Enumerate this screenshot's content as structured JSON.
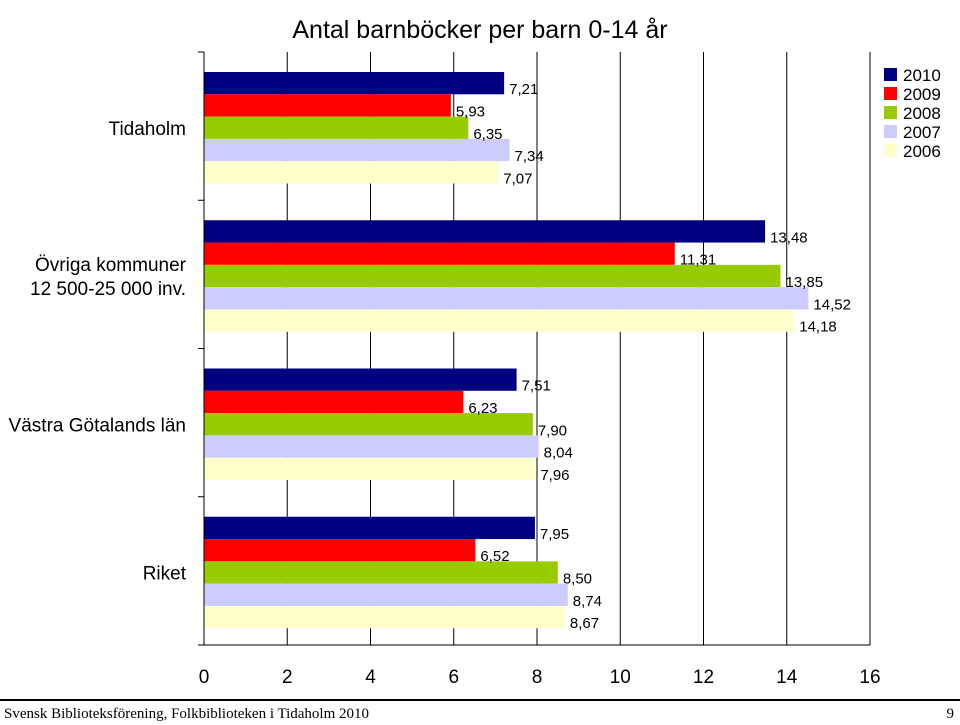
{
  "chart_data": {
    "type": "bar",
    "orientation": "horizontal",
    "title": "Antal barnböcker per barn 0-14 år",
    "categories": [
      "Tidaholm",
      "Övriga kommuner 12 500-25 000 inv.",
      "Västra Götalands län",
      "Riket"
    ],
    "category_lines": [
      [
        "Tidaholm"
      ],
      [
        "Övriga kommuner",
        "12 500-25 000 inv."
      ],
      [
        "Västra Götalands län"
      ],
      [
        "Riket"
      ]
    ],
    "series": [
      {
        "name": "2010",
        "color": "#000080",
        "values": [
          7.21,
          13.48,
          7.51,
          7.95
        ],
        "labels": [
          "7,21",
          "13,48",
          "7,51",
          "7,95"
        ]
      },
      {
        "name": "2009",
        "color": "#ff0000",
        "values": [
          5.93,
          11.31,
          6.23,
          6.52
        ],
        "labels": [
          "5,93",
          "11,31",
          "6,23",
          "6,52"
        ]
      },
      {
        "name": "2008",
        "color": "#99cc00",
        "values": [
          6.35,
          13.85,
          7.9,
          8.5
        ],
        "labels": [
          "6,35",
          "13,85",
          "7,90",
          "8,50"
        ]
      },
      {
        "name": "2007",
        "color": "#ccccff",
        "values": [
          7.34,
          14.52,
          8.04,
          8.74
        ],
        "labels": [
          "7,34",
          "14,52",
          "8,04",
          "8,74"
        ]
      },
      {
        "name": "2006",
        "color": "#ffffcc",
        "values": [
          7.07,
          14.18,
          7.96,
          8.67
        ],
        "labels": [
          "7,07",
          "14,18",
          "7,96",
          "8,67"
        ]
      }
    ],
    "xlim": [
      0,
      16
    ],
    "xticks": [
      0,
      2,
      4,
      6,
      8,
      10,
      12,
      14,
      16
    ],
    "grid": true,
    "legend_position": "top-right"
  },
  "footer": {
    "source": "Svensk Biblioteksförening, Folkbiblioteken i Tidaholm 2010",
    "page_number": "9"
  }
}
